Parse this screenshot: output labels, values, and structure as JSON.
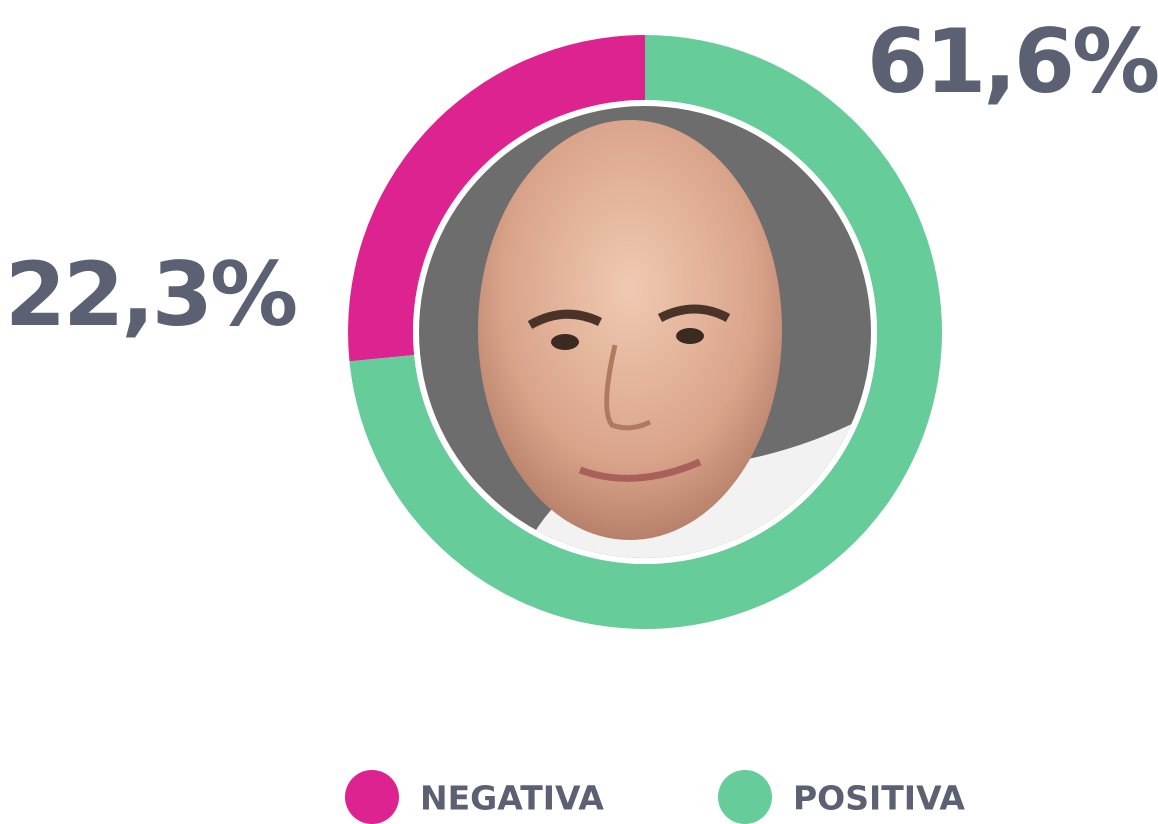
{
  "chart_data": {
    "type": "donut",
    "categories": [
      "NEGATIVA",
      "POSITIVA"
    ],
    "values": [
      22.3,
      61.6
    ],
    "value_labels": [
      "22,3%",
      "61,6%"
    ],
    "colors": [
      "#dd2390",
      "#66cc99"
    ]
  }
}
